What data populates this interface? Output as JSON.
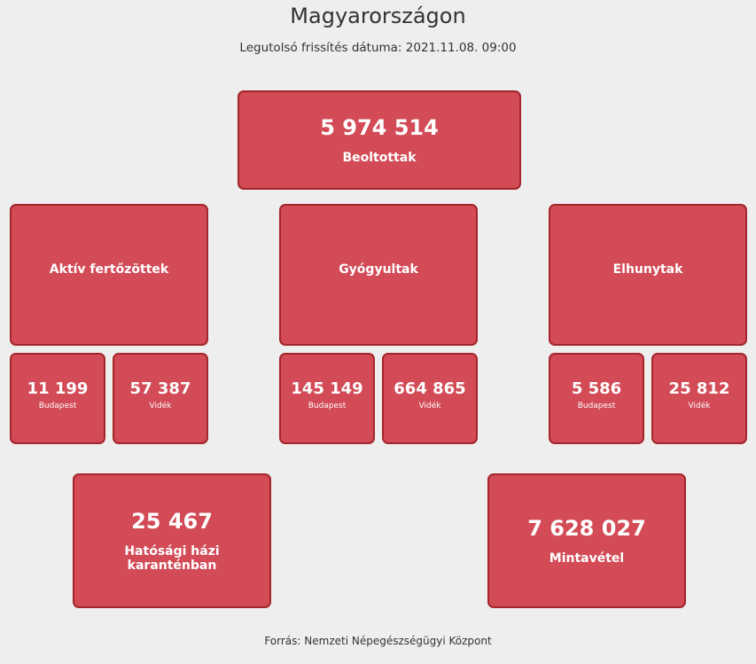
{
  "title": "Magyarországon",
  "updated": "Legutolsó frissítés dátuma: 2021.11.08. 09:00",
  "vaccinated": {
    "value": "5 974 514",
    "label": "Beoltottak"
  },
  "groups": [
    {
      "label": "Aktív fertőzöttek",
      "budapest": "11 199",
      "videk": "57 387"
    },
    {
      "label": "Gyógyultak",
      "budapest": "145 149",
      "videk": "664 865"
    },
    {
      "label": "Elhunytak",
      "budapest": "5 586",
      "videk": "25 812"
    }
  ],
  "sub_labels": {
    "budapest": "Budapest",
    "videk": "Vidék"
  },
  "quarantine": {
    "value": "25 467",
    "label": "Hatósági házi karanténban"
  },
  "samples": {
    "value": "7 628 027",
    "label": "Mintavétel"
  },
  "source": "Forrás: Nemzeti Népegészségügyi Központ",
  "colors": {
    "card": "#d24b57",
    "border": "#a42629",
    "background": "#eeeeee"
  }
}
